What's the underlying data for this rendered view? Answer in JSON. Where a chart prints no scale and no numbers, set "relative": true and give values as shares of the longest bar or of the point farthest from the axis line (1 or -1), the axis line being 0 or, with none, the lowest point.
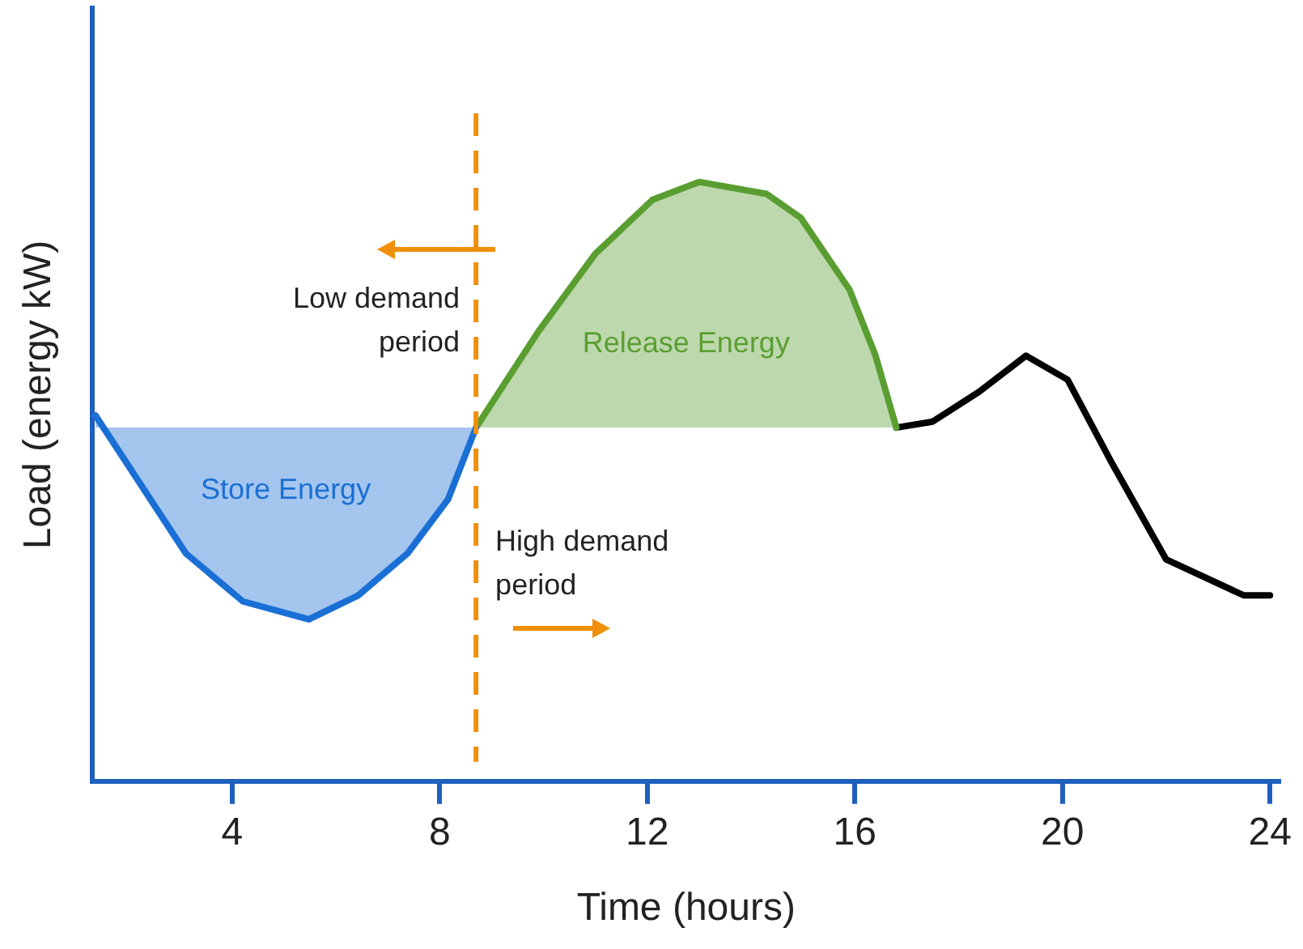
{
  "chart_data": {
    "type": "line",
    "relative": true,
    "xlabel": "Time (hours)",
    "ylabel": "Load (energy kW)",
    "xlim": [
      1.3,
      24.2
    ],
    "xticks": [
      4,
      8,
      12,
      16,
      20,
      24
    ],
    "grid": false,
    "legend": false,
    "marker": "none",
    "line_style": "solid",
    "series": [
      {
        "type": "area",
        "name": "Store Energy",
        "color": "#1a6fd4",
        "x": [
          1.37,
          3.11,
          4.21,
          5.48,
          6.43,
          7.38,
          8.16,
          8.7
        ],
        "values": [
          0.61,
          0.38,
          0.3,
          0.27,
          0.31,
          0.38,
          0.47,
          0.59
        ]
      },
      {
        "type": "area",
        "name": "Release Energy",
        "color": "#5a9e32",
        "x": [
          8.7,
          9.9,
          11.0,
          12.1,
          13.0,
          14.3,
          14.96,
          15.9,
          16.4,
          16.8
        ],
        "values": [
          0.59,
          0.75,
          0.88,
          0.97,
          1.0,
          0.98,
          0.94,
          0.82,
          0.71,
          0.59
        ]
      },
      {
        "color": "#000000",
        "x": [
          16.8,
          17.5,
          18.4,
          19.3,
          20.1,
          20.96,
          22.0,
          23.5,
          24.0
        ],
        "values": [
          0.59,
          0.6,
          0.65,
          0.71,
          0.67,
          0.53,
          0.37,
          0.31,
          0.31
        ]
      }
    ],
    "ref_lines": [
      {
        "axis": "x",
        "value": 8.7,
        "color": "#f0900a",
        "line_style": "dashed"
      }
    ],
    "annotations": [
      "Low demand period",
      "High demand period"
    ]
  }
}
